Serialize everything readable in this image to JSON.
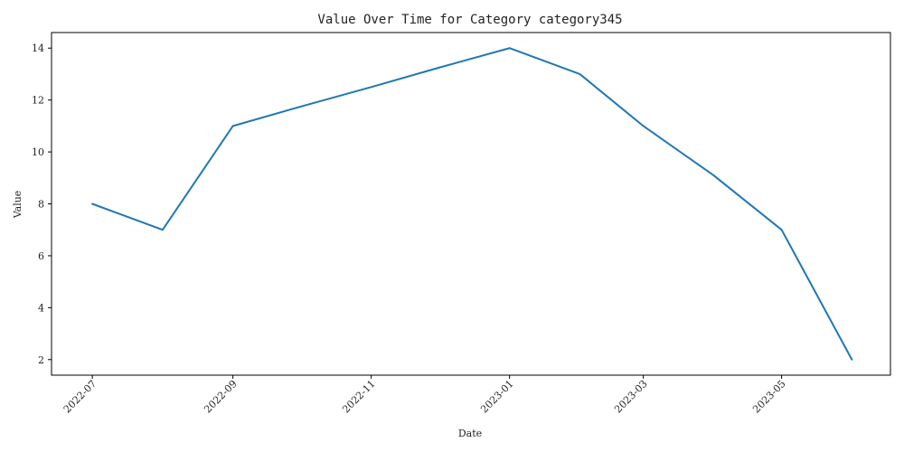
{
  "chart_data": {
    "type": "line",
    "title": "Value Over Time for Category category345",
    "xlabel": "Date",
    "ylabel": "Value",
    "x": [
      "2022-07",
      "2022-08",
      "2022-09",
      "2022-10",
      "2022-11",
      "2022-12",
      "2023-01",
      "2023-02",
      "2023-03",
      "2023-04",
      "2023-05",
      "2023-06"
    ],
    "series": [
      {
        "values": [
          8,
          7,
          11,
          11.75,
          12.5,
          13.25,
          14,
          13,
          11,
          9.1,
          7,
          2
        ]
      }
    ],
    "x_ticks": [
      "2022-07",
      "2022-09",
      "2022-11",
      "2023-01",
      "2023-03",
      "2023-05"
    ],
    "y_ticks": [
      2,
      4,
      6,
      8,
      10,
      12,
      14
    ],
    "xlim": [
      "2022-06-13",
      "2023-06-18"
    ],
    "ylim": [
      1.4,
      14.6
    ],
    "grid": false,
    "color": "#1f77b4"
  }
}
